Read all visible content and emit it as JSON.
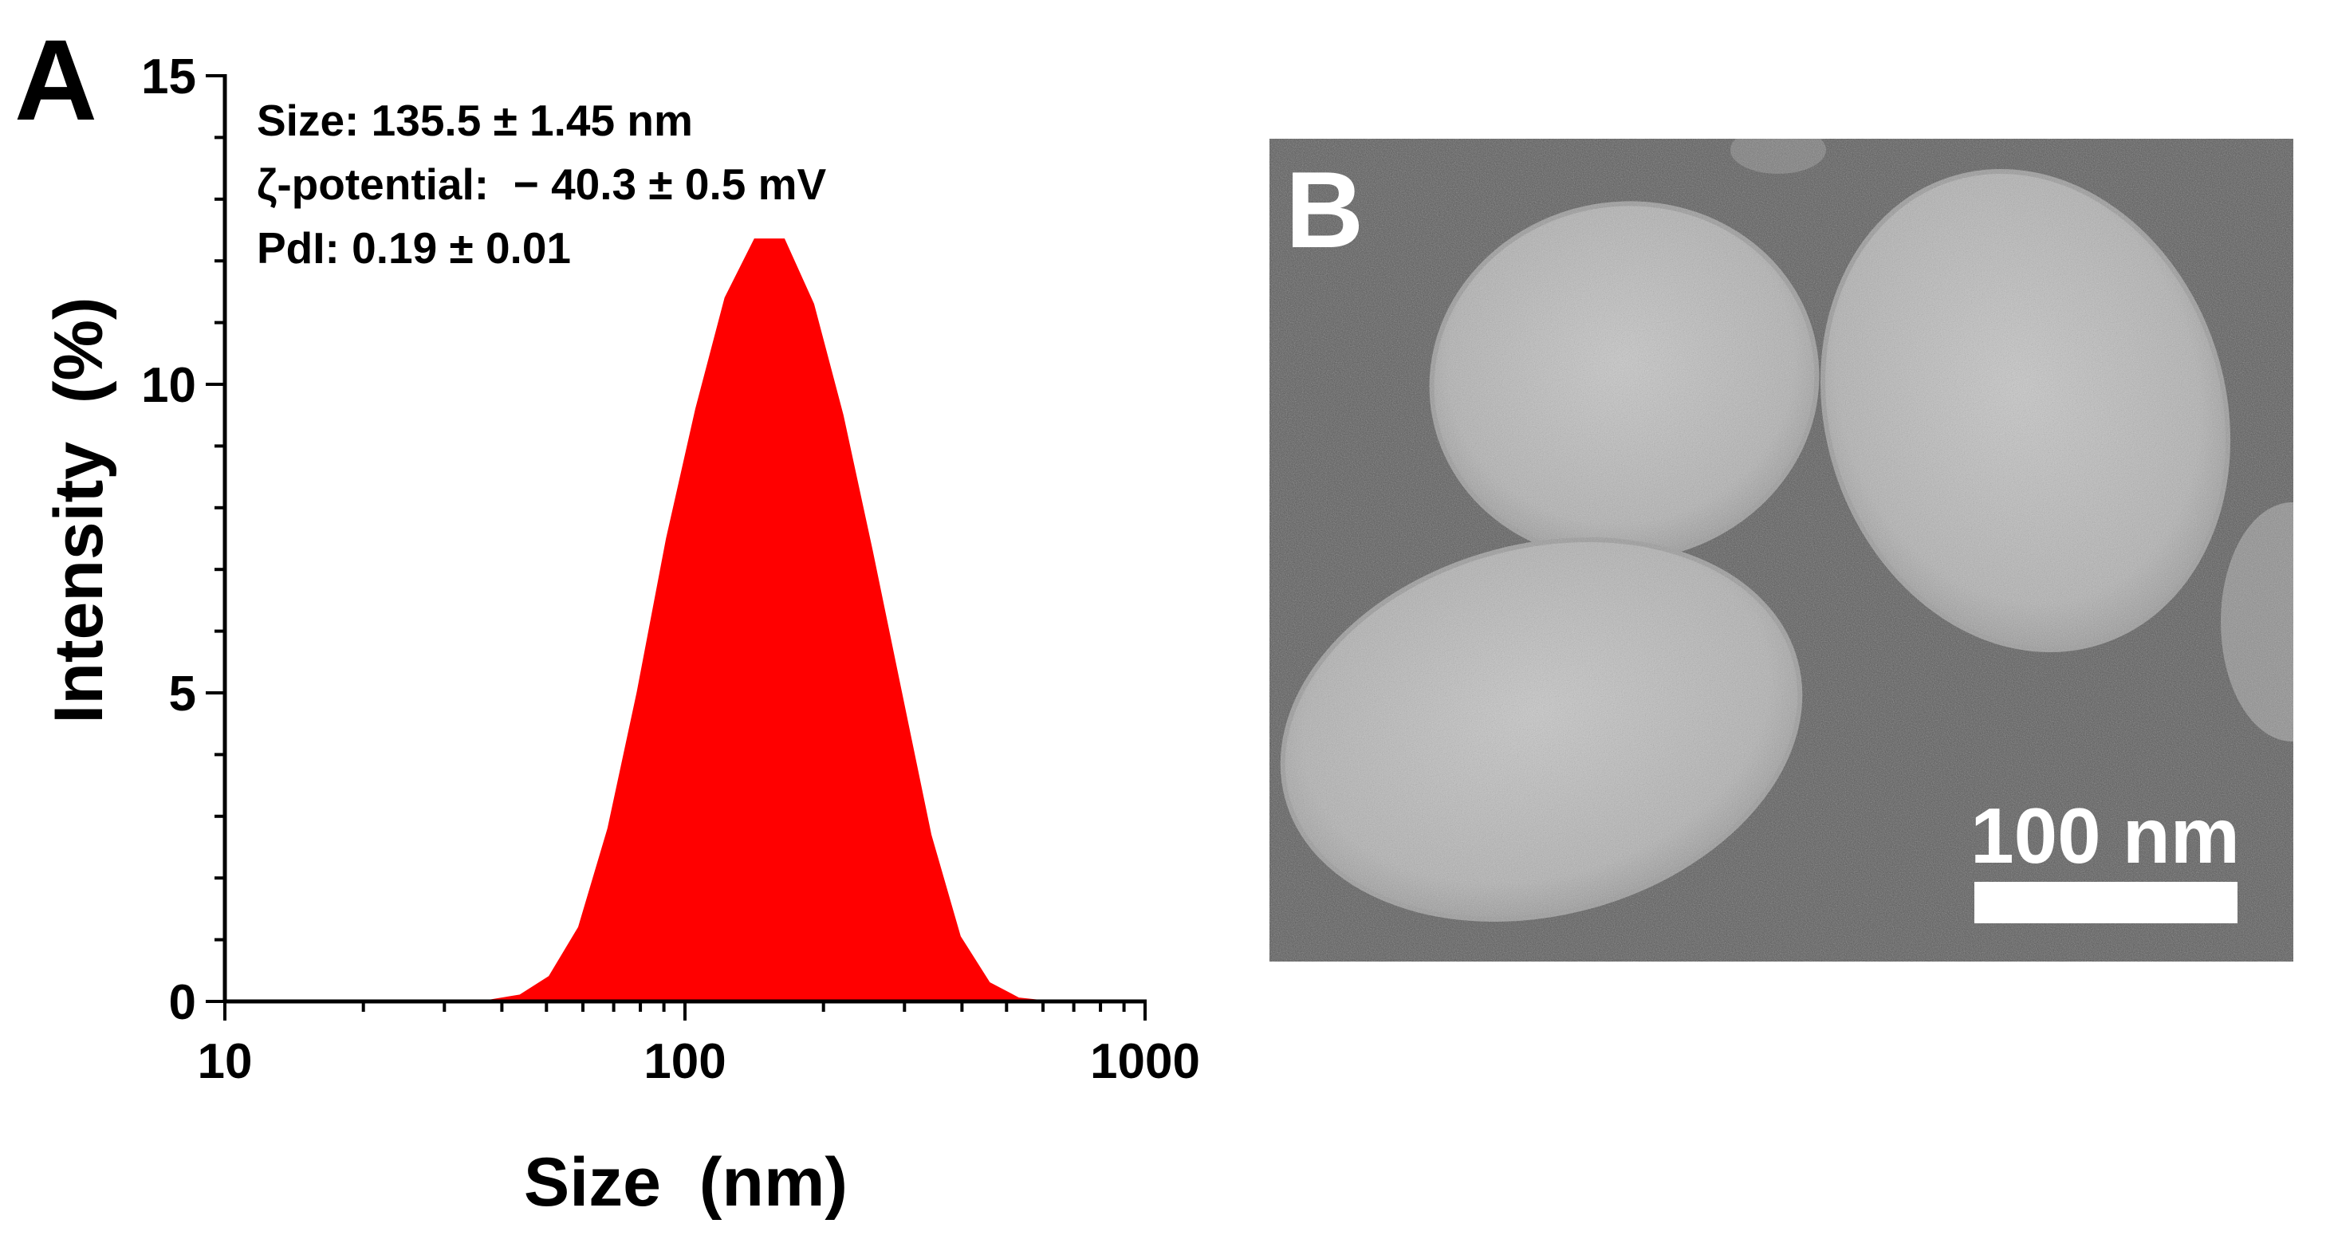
{
  "panels": {
    "a_label": "A",
    "b_label": "B"
  },
  "tem": {
    "scale_bar_label": "100 nm",
    "scale_bar_nm": 100
  },
  "colors": {
    "fill": "#ff0000",
    "axis": "#000000",
    "tem_background": "#5a5a5a",
    "particle": "#b9b9b9"
  },
  "chart_data": {
    "type": "area",
    "title": "",
    "xlabel": "Size  (nm)",
    "ylabel": "Intensity  (%)",
    "xscale": "log",
    "xlim": [
      10,
      1000
    ],
    "ylim": [
      0,
      15
    ],
    "xticks": [
      10,
      100,
      1000
    ],
    "xtick_labels": [
      "10",
      "100",
      "1000"
    ],
    "yticks": [
      0,
      5,
      10,
      15
    ],
    "ytick_labels": [
      "0",
      "5",
      "10",
      "15"
    ],
    "grid": false,
    "legend": "none",
    "annotations": [
      "Size: 135.5 ± 1.45 nm",
      "ζ-potential:  − 40.3 ± 0.5 mV",
      "PdI: 0.19 ± 0.01"
    ],
    "series": [
      {
        "x": [
          24.4,
          28.2,
          32.7,
          37.8,
          43.8,
          50.7,
          58.8,
          68.1,
          78.8,
          91.3,
          105.7,
          122.4,
          141.8,
          164.2,
          190.1,
          220.2,
          255.0,
          295.3,
          342.0,
          396.1,
          458.7,
          531.2,
          615.1
        ],
        "y": [
          0.02,
          0.02,
          0.02,
          0.02,
          0.1,
          0.4,
          1.2,
          2.8,
          5.0,
          7.5,
          9.6,
          11.4,
          12.35,
          12.35,
          11.3,
          9.5,
          7.3,
          5.0,
          2.7,
          1.05,
          0.3,
          0.05,
          0.0
        ]
      }
    ]
  }
}
